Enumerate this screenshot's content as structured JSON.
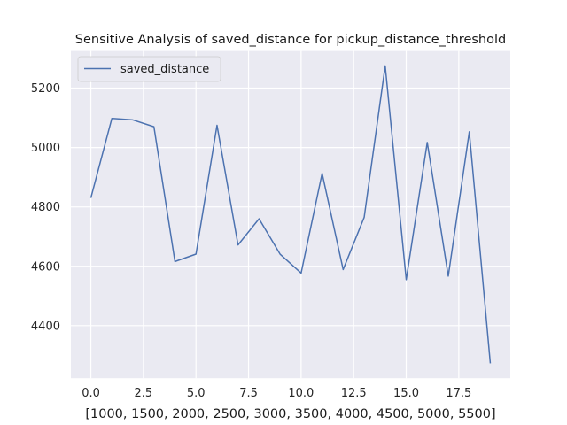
{
  "chart_data": {
    "type": "line",
    "title": "Sensitive Analysis of saved_distance for pickup_distance_threshold",
    "xlabel": "[1000, 1500, 2000, 2500, 3000, 3500, 4000, 4500, 5000, 5500]",
    "ylabel": "",
    "x": [
      0,
      1,
      2,
      3,
      4,
      5,
      6,
      7,
      8,
      9,
      10,
      11,
      12,
      13,
      14,
      15,
      16,
      17,
      18,
      19
    ],
    "series": [
      {
        "name": "saved_distance",
        "color": "#4c72b0",
        "values": [
          4830,
          5098,
          5093,
          5070,
          4616,
          4641,
          5075,
          4672,
          4760,
          4641,
          4577,
          4913,
          4589,
          4765,
          5275,
          4555,
          5017,
          4567,
          5053,
          4273
        ]
      }
    ],
    "xlim": [
      -0.95,
      19.95
    ],
    "ylim": [
      4223,
      5325
    ],
    "xticks": [
      0,
      2.5,
      5,
      7.5,
      10,
      12.5,
      15,
      17.5
    ],
    "xtick_labels": [
      "0.0",
      "2.5",
      "5.0",
      "7.5",
      "10.0",
      "12.5",
      "15.0",
      "17.5"
    ],
    "yticks": [
      4400,
      4600,
      4800,
      5000,
      5200
    ],
    "ytick_labels": [
      "4400",
      "4600",
      "4800",
      "5000",
      "5200"
    ],
    "grid": true,
    "legend_position": "top-left",
    "background_color": "#eaeaf2",
    "grid_color": "#ffffff"
  }
}
